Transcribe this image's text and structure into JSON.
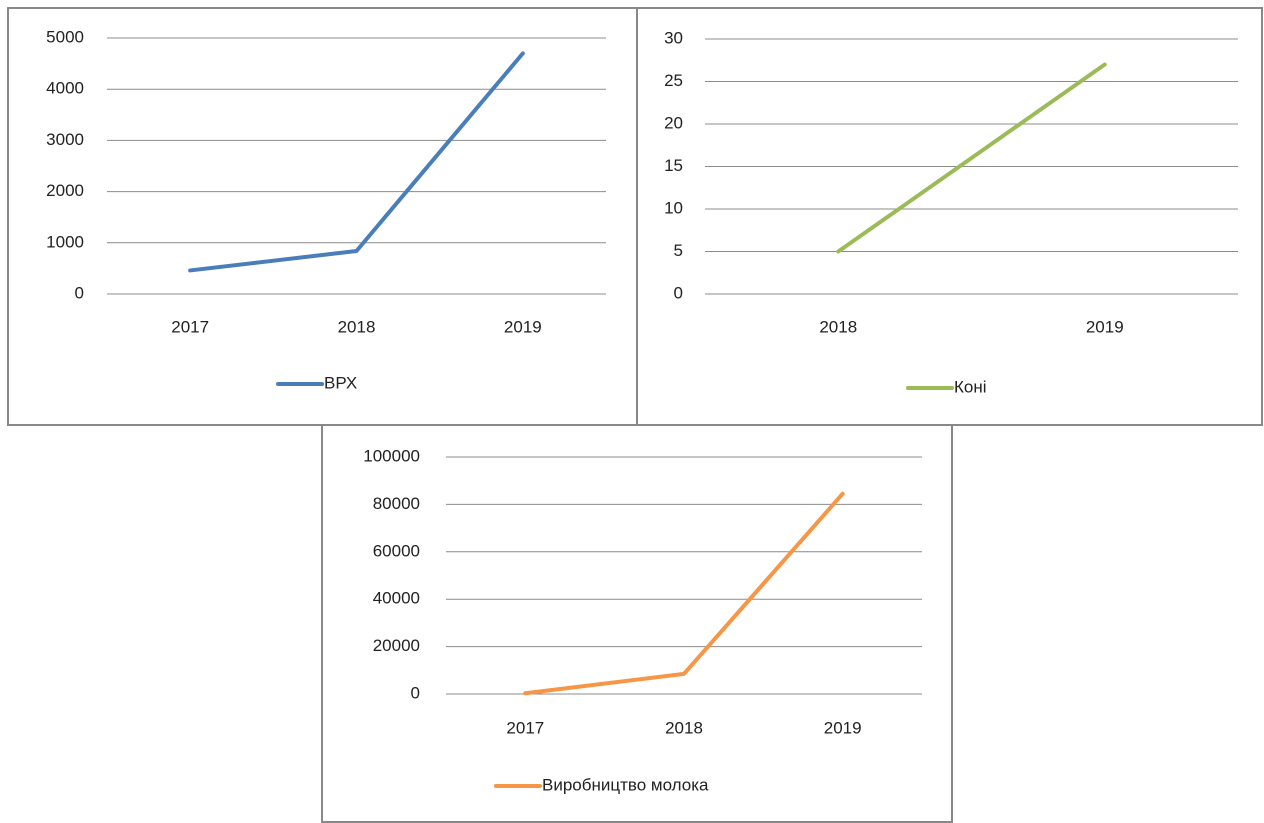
{
  "chart_data": [
    {
      "type": "line",
      "categories": [
        "2017",
        "2018",
        "2019"
      ],
      "series": [
        {
          "name": "ВРХ",
          "color": "#4a7ebb",
          "values": [
            460,
            840,
            4700
          ]
        }
      ],
      "ylim": [
        0,
        5000
      ],
      "yticks": [
        0,
        1000,
        2000,
        3000,
        4000,
        5000
      ],
      "grid": true,
      "legend": "bottom"
    },
    {
      "type": "line",
      "categories": [
        "2018",
        "2019"
      ],
      "series": [
        {
          "name": "Коні",
          "color": "#9bbb59",
          "values": [
            5,
            27
          ]
        }
      ],
      "ylim": [
        0,
        30
      ],
      "yticks": [
        0,
        5,
        10,
        15,
        20,
        25,
        30
      ],
      "grid": true,
      "legend": "bottom"
    },
    {
      "type": "line",
      "categories": [
        "2017",
        "2018",
        "2019"
      ],
      "series": [
        {
          "name": "Виробництво молока",
          "color": "#f79646",
          "values": [
            300,
            8500,
            84500
          ]
        }
      ],
      "ylim": [
        0,
        100000
      ],
      "yticks": [
        0,
        20000,
        40000,
        60000,
        80000,
        100000
      ],
      "grid": true,
      "legend": "bottom"
    }
  ]
}
